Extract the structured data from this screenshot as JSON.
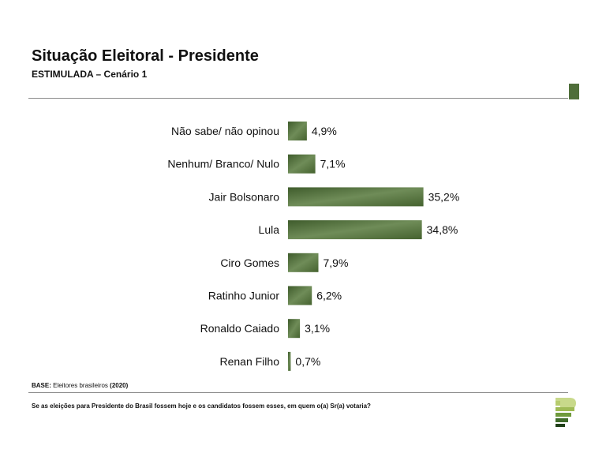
{
  "header": {
    "title": "Situação Eleitoral - Presidente",
    "subtitle": "ESTIMULADA – Cenário 1"
  },
  "chart_data": {
    "type": "bar",
    "orientation": "horizontal",
    "categories": [
      "Não sabe/ não opinou",
      "Nenhum/ Branco/ Nulo",
      "Jair Bolsonaro",
      "Lula",
      "Ciro Gomes",
      "Ratinho Junior",
      "Ronaldo Caiado",
      "Renan Filho"
    ],
    "values": [
      4.9,
      7.1,
      35.2,
      34.8,
      7.9,
      6.2,
      3.1,
      0.7
    ],
    "labels": [
      "4,9%",
      "7,1%",
      "35,2%",
      "34,8%",
      "7,9%",
      "6,2%",
      "3,1%",
      "0,7%"
    ],
    "xlim": [
      0,
      40
    ],
    "unit": "%",
    "bar_color": "#4f6e3a",
    "bar_color_light": "#7d9a66"
  },
  "footer": {
    "base_label": "BASE:",
    "base_text": "Eleitores brasileiros",
    "base_year": "(2020)",
    "question": "Se as eleições para Presidente do Brasil fossem hoje e os candidatos fossem esses, em quem o(a) Sr(a) votaria?"
  },
  "colors": {
    "accent": "#4f6e3a",
    "rule": "#8a8a8a"
  },
  "logo": {
    "icon": "brand-logo-icon"
  }
}
